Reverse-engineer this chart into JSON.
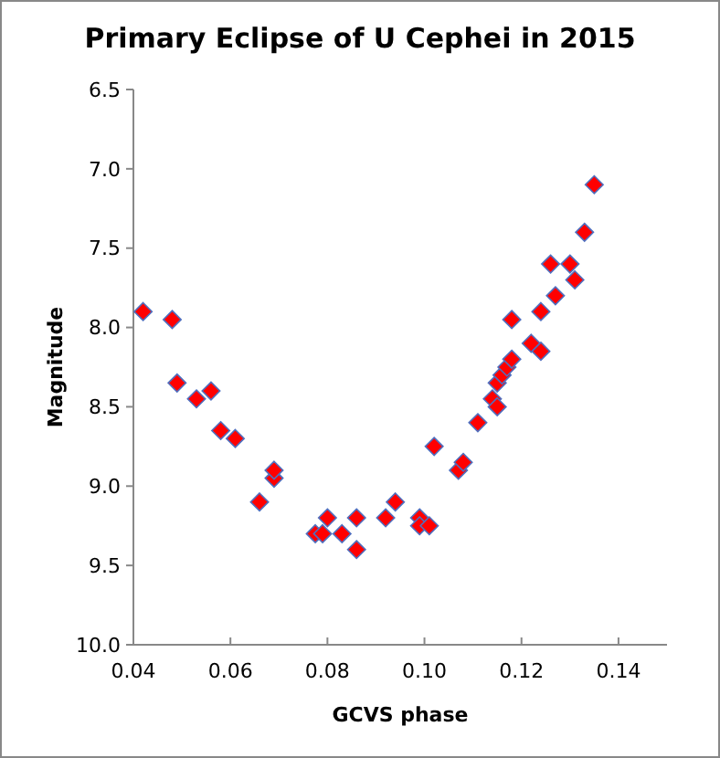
{
  "chart_data": {
    "type": "scatter",
    "title": "Primary Eclipse of U Cephei in 2015",
    "xlabel": "GCVS phase",
    "ylabel": "Magnitude",
    "x": [
      0.042,
      0.048,
      0.049,
      0.053,
      0.056,
      0.058,
      0.061,
      0.066,
      0.069,
      0.069,
      0.0775,
      0.079,
      0.08,
      0.083,
      0.086,
      0.086,
      0.092,
      0.094,
      0.099,
      0.099,
      0.101,
      0.102,
      0.107,
      0.108,
      0.111,
      0.114,
      0.115,
      0.115,
      0.116,
      0.117,
      0.118,
      0.118,
      0.122,
      0.124,
      0.124,
      0.126,
      0.127,
      0.13,
      0.131,
      0.133,
      0.135
    ],
    "values": [
      7.9,
      7.95,
      8.35,
      8.45,
      8.4,
      8.65,
      8.7,
      9.1,
      8.95,
      8.9,
      9.3,
      9.3,
      9.2,
      9.3,
      9.2,
      9.4,
      9.2,
      9.1,
      9.2,
      9.25,
      9.25,
      8.75,
      8.9,
      8.85,
      8.6,
      8.45,
      8.5,
      8.35,
      8.3,
      8.25,
      7.95,
      8.2,
      8.1,
      8.15,
      7.9,
      7.6,
      7.8,
      7.6,
      7.7,
      7.4,
      7.1
    ],
    "color": "#ff0000",
    "marker": "diamond",
    "xlim": [
      0.04,
      0.15
    ],
    "xticks": [
      {
        "value": 0.04,
        "label": "0.04"
      },
      {
        "value": 0.06,
        "label": "0.06"
      },
      {
        "value": 0.08,
        "label": "0.08"
      },
      {
        "value": 0.1,
        "label": "0.10"
      },
      {
        "value": 0.12,
        "label": "0.12"
      },
      {
        "value": 0.14,
        "label": "0.14"
      }
    ],
    "ylim": [
      10.0,
      6.5
    ],
    "yticks": [
      {
        "value": 6.5,
        "label": "6.5"
      },
      {
        "value": 7,
        "label": "7.0"
      },
      {
        "value": 7.5,
        "label": "7.5"
      },
      {
        "value": 8,
        "label": "8.0"
      },
      {
        "value": 8.5,
        "label": "8.5"
      },
      {
        "value": 9,
        "label": "9.0"
      },
      {
        "value": 9.5,
        "label": "9.5"
      },
      {
        "value": 10,
        "label": "10.0"
      }
    ]
  }
}
